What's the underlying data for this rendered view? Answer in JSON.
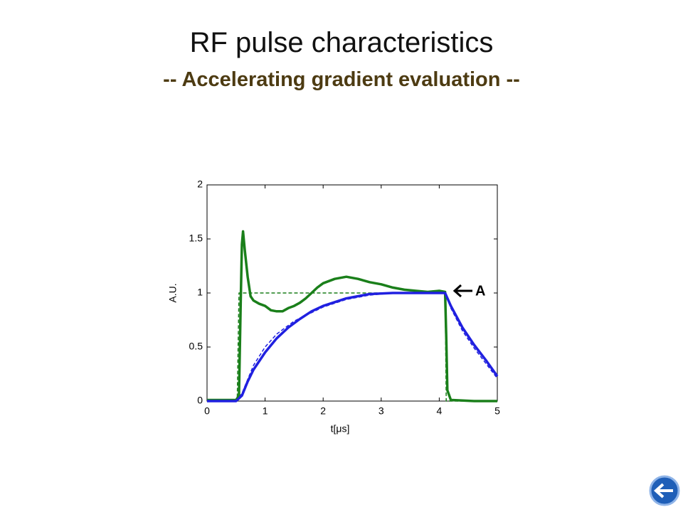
{
  "chart_data": {
    "type": "line",
    "title": "RF pulse characteristics",
    "subtitle": "-- Accelerating gradient evaluation --",
    "xlabel": "t[μs]",
    "ylabel": "A.U.",
    "annotation": "A",
    "xlim": [
      0,
      5
    ],
    "ylim": [
      0,
      2
    ],
    "xticks": [
      0,
      1,
      2,
      3,
      4,
      5
    ],
    "yticks": [
      0,
      0.5,
      1,
      1.5,
      2
    ],
    "series": [
      {
        "color": "#1a7f1a",
        "dashed": true,
        "x": [
          0,
          0.52,
          0.55,
          4.1,
          4.12,
          5
        ],
        "values": [
          0,
          0,
          1,
          1,
          0,
          0
        ]
      },
      {
        "color": "#1a7f1a",
        "dashed": false,
        "x": [
          0,
          0.5,
          0.55,
          0.58,
          0.6,
          0.62,
          0.65,
          0.7,
          0.75,
          0.8,
          0.9,
          1.0,
          1.1,
          1.2,
          1.3,
          1.4,
          1.5,
          1.6,
          1.7,
          1.8,
          1.9,
          2.0,
          2.2,
          2.4,
          2.6,
          2.8,
          3.0,
          3.2,
          3.4,
          3.6,
          3.8,
          4.0,
          4.1,
          4.12,
          4.14,
          4.2,
          4.6,
          5
        ],
        "values": [
          0.01,
          0.01,
          0.05,
          0.9,
          1.45,
          1.57,
          1.4,
          1.15,
          0.97,
          0.93,
          0.9,
          0.88,
          0.84,
          0.83,
          0.83,
          0.86,
          0.88,
          0.91,
          0.95,
          1.0,
          1.05,
          1.09,
          1.13,
          1.15,
          1.13,
          1.1,
          1.08,
          1.05,
          1.03,
          1.02,
          1.01,
          1.02,
          1.01,
          0.6,
          0.1,
          0.01,
          0,
          0
        ]
      },
      {
        "color": "#2020e0",
        "dashed": true,
        "x": [
          0,
          0.5,
          0.6,
          0.8,
          1.0,
          1.2,
          1.5,
          2.0,
          2.4,
          2.8,
          3.2,
          4.1,
          4.2,
          4.4,
          4.6,
          4.8,
          5.0
        ],
        "values": [
          0,
          0,
          0.07,
          0.33,
          0.5,
          0.62,
          0.74,
          0.87,
          0.94,
          0.98,
          1.0,
          1.0,
          0.86,
          0.65,
          0.49,
          0.35,
          0.21
        ]
      },
      {
        "color": "#2020e0",
        "dashed": false,
        "x": [
          0,
          0.5,
          0.6,
          0.7,
          0.8,
          1.0,
          1.2,
          1.4,
          1.6,
          1.8,
          2.0,
          2.4,
          2.8,
          3.2,
          3.6,
          4.1,
          4.2,
          4.4,
          4.6,
          4.8,
          5.0
        ],
        "values": [
          0,
          0,
          0.05,
          0.18,
          0.29,
          0.45,
          0.58,
          0.68,
          0.76,
          0.83,
          0.88,
          0.95,
          0.99,
          1.0,
          1.0,
          1.0,
          0.88,
          0.68,
          0.52,
          0.38,
          0.23
        ]
      }
    ]
  }
}
